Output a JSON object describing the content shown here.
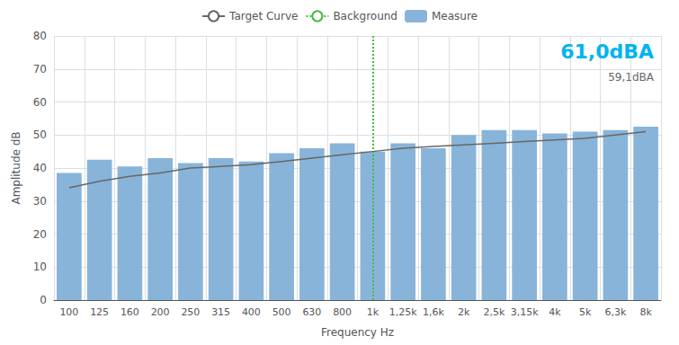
{
  "chart_data": {
    "type": "bar",
    "categories": [
      "100",
      "125",
      "160",
      "200",
      "250",
      "315",
      "400",
      "500",
      "630",
      "800",
      "1k",
      "1,25k",
      "1,6k",
      "2k",
      "2,5k",
      "3,15k",
      "4k",
      "5k",
      "6,3k",
      "8k"
    ],
    "series": [
      {
        "name": "Target Curve",
        "type": "line",
        "color": "#666666",
        "values": [
          34.0,
          36.0,
          37.5,
          38.5,
          40.0,
          40.5,
          41.0,
          42.0,
          43.0,
          44.0,
          45.0,
          46.0,
          46.5,
          47.0,
          47.5,
          48.0,
          48.5,
          49.0,
          50.0,
          51.0
        ]
      },
      {
        "name": "Background",
        "type": "vline",
        "x": "1k",
        "color": "#44BB44",
        "line_style": "dotted"
      },
      {
        "name": "Measure",
        "type": "bar",
        "color": "#89B4D9",
        "values": [
          38.5,
          42.5,
          40.5,
          43.0,
          41.5,
          43.0,
          42.0,
          44.5,
          46.0,
          47.5,
          45.0,
          47.5,
          46.0,
          50.0,
          51.5,
          51.5,
          50.5,
          51.0,
          51.5,
          52.5
        ]
      }
    ],
    "xlabel": "Frequency Hz",
    "ylabel": "Amplitude dB",
    "ylim": [
      0,
      80
    ],
    "yticks": [
      0,
      10,
      20,
      30,
      40,
      50,
      60,
      70,
      80
    ],
    "grid": true,
    "legend": "top",
    "annotations": [
      {
        "text": "61,0dBA",
        "color": "#00B4F0"
      },
      {
        "text": "59,1dBA",
        "color": "#666666"
      }
    ]
  }
}
